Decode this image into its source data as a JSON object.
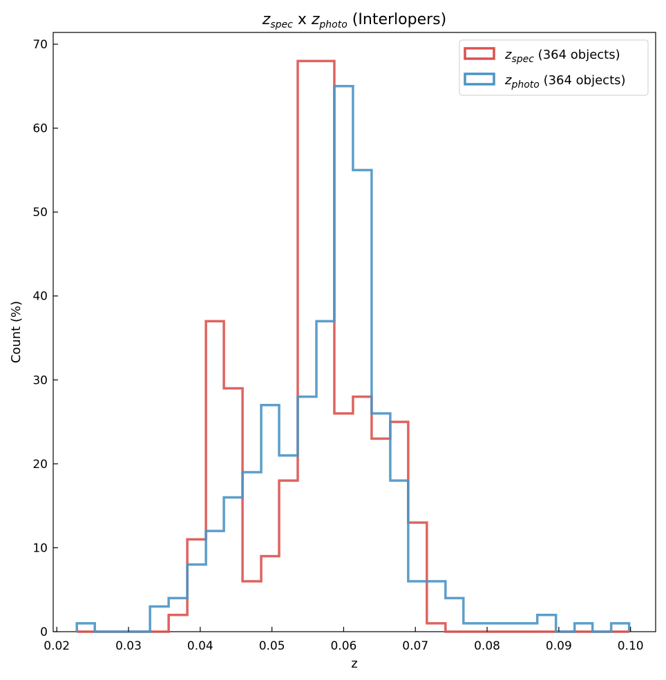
{
  "chart_data": {
    "type": "histogram",
    "title": {
      "main_1": "z",
      "sub_1": "spec",
      "mid": " x ",
      "main_2": "z",
      "sub_2": "photo",
      "suffix": " (Interlopers)"
    },
    "xlabel": "z",
    "ylabel": "Count (%)",
    "xlim": [
      0.0195,
      0.1035
    ],
    "ylim": [
      0,
      71.4
    ],
    "xticks": [
      "0.02",
      "0.03",
      "0.04",
      "0.05",
      "0.06",
      "0.07",
      "0.08",
      "0.09",
      "0.10"
    ],
    "yticks": [
      "0",
      "10",
      "20",
      "30",
      "40",
      "50",
      "60",
      "70"
    ],
    "bin_edges": [
      0.0228,
      0.0253,
      0.0279,
      0.0305,
      0.033,
      0.0356,
      0.0382,
      0.0408,
      0.0433,
      0.0459,
      0.0485,
      0.051,
      0.0536,
      0.0562,
      0.0587,
      0.0613,
      0.0639,
      0.0665,
      0.069,
      0.0716,
      0.0742,
      0.0767,
      0.0793,
      0.0819,
      0.0844,
      0.087,
      0.0896,
      0.0922,
      0.0947,
      0.0973,
      0.0998
    ],
    "series": [
      {
        "name": "spec",
        "legend_main": "z",
        "legend_sub": "spec",
        "legend_suffix": " (364 objects)",
        "color": "#d9534f",
        "values": [
          0,
          0,
          0,
          0,
          0,
          2,
          11,
          37,
          29,
          6,
          9,
          18,
          68,
          68,
          26,
          28,
          23,
          25,
          13,
          1,
          0,
          0,
          0,
          0,
          0,
          0,
          0,
          0,
          0,
          0
        ]
      },
      {
        "name": "photo",
        "legend_main": "z",
        "legend_sub": "photo",
        "legend_suffix": " (364 objects)",
        "color": "#4a94c4",
        "values": [
          1,
          0,
          0,
          0,
          3,
          4,
          8,
          12,
          16,
          19,
          27,
          21,
          28,
          37,
          65,
          55,
          26,
          18,
          6,
          6,
          4,
          1,
          1,
          1,
          1,
          2,
          0,
          1,
          0,
          1
        ]
      }
    ],
    "legend_position": "top-right"
  }
}
